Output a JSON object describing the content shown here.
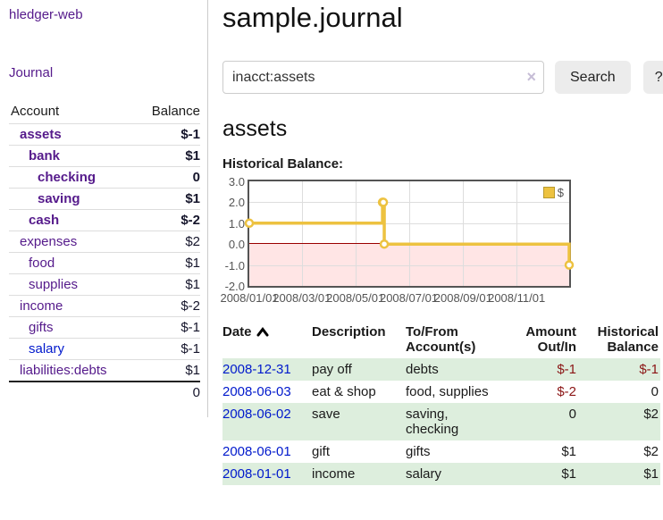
{
  "app": {
    "name": "hledger-web",
    "nav_journal": "Journal"
  },
  "sidebar": {
    "headers": {
      "account": "Account",
      "balance": "Balance"
    },
    "accounts": [
      {
        "name": "assets",
        "level": 0,
        "bold": true,
        "balance": "$-1"
      },
      {
        "name": "bank",
        "level": 1,
        "bold": true,
        "balance": "$1"
      },
      {
        "name": "checking",
        "level": 2,
        "bold": true,
        "balance": "0"
      },
      {
        "name": "saving",
        "level": 2,
        "bold": true,
        "balance": "$1"
      },
      {
        "name": "cash",
        "level": 1,
        "bold": true,
        "balance": "$-2"
      },
      {
        "name": "expenses",
        "level": 0,
        "bold": false,
        "balance": "$2"
      },
      {
        "name": "food",
        "level": 1,
        "bold": false,
        "balance": "$1"
      },
      {
        "name": "supplies",
        "level": 1,
        "bold": false,
        "balance": "$1"
      },
      {
        "name": "income",
        "level": 0,
        "bold": false,
        "balance": "$-2"
      },
      {
        "name": "gifts",
        "level": 1,
        "bold": false,
        "balance": "$-1"
      },
      {
        "name": "salary",
        "level": 1,
        "bold": false,
        "balance": "$-1",
        "link_color": "#0019cc"
      },
      {
        "name": "liabilities:debts",
        "level": 0,
        "bold": false,
        "balance": "$1"
      }
    ],
    "total": "0"
  },
  "header": {
    "title": "sample.journal"
  },
  "search": {
    "value": "inacct:assets",
    "clear_icon": "×",
    "button": "Search",
    "help_button": "?"
  },
  "account_page": {
    "heading": "assets",
    "chart_label": "Historical Balance:"
  },
  "chart_data": {
    "type": "line",
    "step": true,
    "title": "Historical Balance",
    "series": [
      {
        "name": "$",
        "color": "#edc240",
        "points": [
          [
            "2008-01-01",
            1.0
          ],
          [
            "2008-06-01",
            2.0
          ],
          [
            "2008-06-02",
            2.0
          ],
          [
            "2008-06-03",
            0.0
          ],
          [
            "2008-12-31",
            -1.0
          ]
        ]
      }
    ],
    "x_range": [
      "2008-01-01",
      "2008-12-31"
    ],
    "x_ticks": [
      {
        "date": "2008-01-01",
        "label": "2008/01/01"
      },
      {
        "date": "2008-03-01",
        "label": "2008/03/01"
      },
      {
        "date": "2008-05-01",
        "label": "2008/05/01"
      },
      {
        "date": "2008-07-01",
        "label": "2008/07/01"
      },
      {
        "date": "2008-09-01",
        "label": "2008/09/01"
      },
      {
        "date": "2008-11-01",
        "label": "2008/11/01"
      }
    ],
    "y_ticks": [
      {
        "value": 3,
        "label": "3.0"
      },
      {
        "value": 2,
        "label": "2.0"
      },
      {
        "value": 1,
        "label": "1.0"
      },
      {
        "value": 0,
        "label": "0.0"
      },
      {
        "value": -1,
        "label": "-1.0"
      },
      {
        "value": -2,
        "label": "-2.0"
      }
    ],
    "ylim": [
      -2,
      3
    ],
    "grid": true,
    "legend_position": "top-right",
    "colors": {
      "zero_line": "#990000",
      "negative_region": "rgba(255,0,0,0.10)",
      "grid": "#dddddd",
      "border": "#545454",
      "tick_labels": "#545454"
    }
  },
  "register": {
    "headers": {
      "date": "Date",
      "description": "Description",
      "accounts": "To/From Account(s)",
      "amount": "Amount Out/In",
      "balance": "Historical Balance"
    },
    "rows": [
      {
        "date": "2008-12-31",
        "description": "pay off",
        "accounts": "debts",
        "amount": "$-1",
        "balance": "$-1"
      },
      {
        "date": "2008-06-03",
        "description": "eat & shop",
        "accounts": "food, supplies",
        "amount": "$-2",
        "balance": "0"
      },
      {
        "date": "2008-06-02",
        "description": "save",
        "accounts": "saving, checking",
        "amount": "0",
        "balance": "$2"
      },
      {
        "date": "2008-06-01",
        "description": "gift",
        "accounts": "gifts",
        "amount": "$1",
        "balance": "$2"
      },
      {
        "date": "2008-01-01",
        "description": "income",
        "accounts": "salary",
        "amount": "$1",
        "balance": "$1"
      }
    ],
    "stripe_color": "#ddeedd"
  },
  "colors": {
    "link_purple": "#551a8b",
    "link_blue": "#0019cc",
    "negative_strong": "#7b1010",
    "negative_muted": "#bb7b7b"
  }
}
